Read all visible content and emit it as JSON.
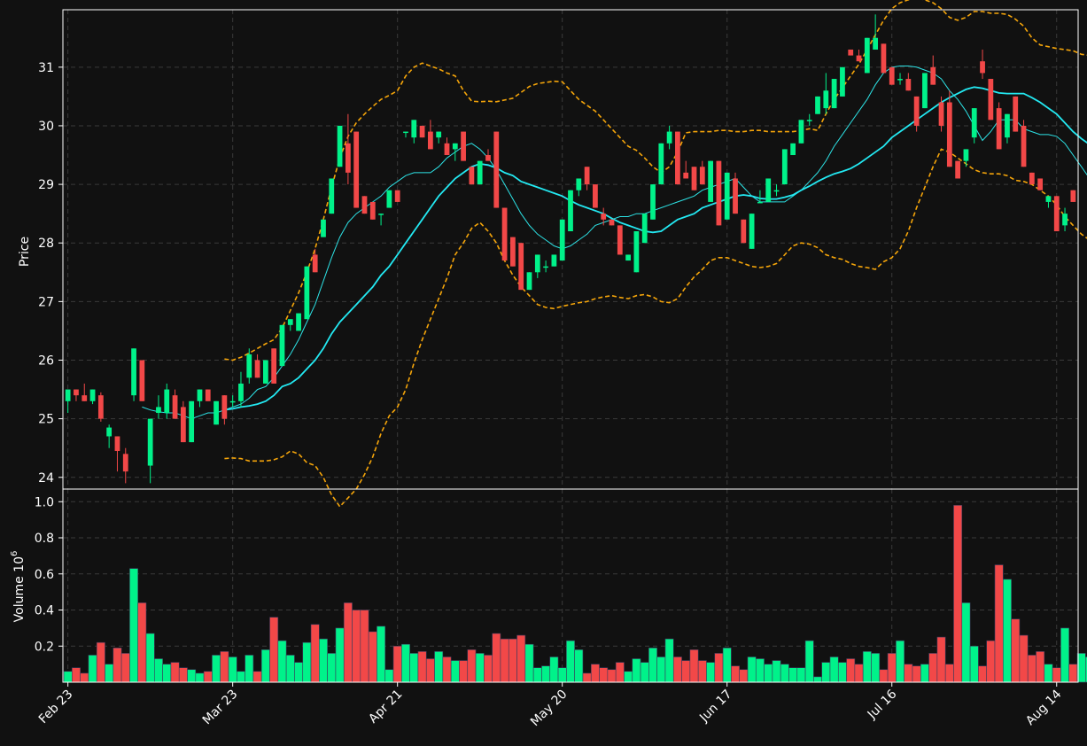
{
  "colors": {
    "background": "#111111",
    "up": "#00f28a",
    "down": "#f24848",
    "ma_fast": "#2de3e6",
    "ma_slow": "#23e9f2",
    "bands": "#f5a50a",
    "grid": "#3a3a3a",
    "text": "#ffffff"
  },
  "chart_data": {
    "type": "candlestick",
    "ylabel": "Price",
    "volume_label": "Volume  10",
    "volume_exponent": "6",
    "price_ylim": [
      23.8,
      31.98
    ],
    "price_yticks": [
      24,
      25,
      26,
      27,
      28,
      29,
      30,
      31
    ],
    "volume_ylim": [
      0,
      1.07
    ],
    "volume_yticks": [
      0.2,
      0.4,
      0.6,
      0.8,
      1.0
    ],
    "x_ticks": [
      {
        "index": 0,
        "label": "Feb 23"
      },
      {
        "index": 20,
        "label": "Mar 23"
      },
      {
        "index": 40,
        "label": "Apr 21"
      },
      {
        "index": 60,
        "label": "May 20"
      },
      {
        "index": 80,
        "label": "Jun 17"
      },
      {
        "index": 100,
        "label": "Jul 16"
      },
      {
        "index": 120,
        "label": "Aug 14"
      }
    ],
    "grid": true,
    "ohlc": [
      [
        25.3,
        25.5,
        25.1,
        25.5
      ],
      [
        25.5,
        25.5,
        25.3,
        25.4
      ],
      [
        25.4,
        25.6,
        25.3,
        25.3
      ],
      [
        25.3,
        25.5,
        25.25,
        25.5
      ],
      [
        25.4,
        25.45,
        24.95,
        25.0
      ],
      [
        24.7,
        24.9,
        24.5,
        24.85
      ],
      [
        24.7,
        24.7,
        24.1,
        24.45
      ],
      [
        24.4,
        24.5,
        23.9,
        24.1
      ],
      [
        25.4,
        26.2,
        25.3,
        26.2
      ],
      [
        26.0,
        26.0,
        25.3,
        25.3
      ],
      [
        24.2,
        25.0,
        23.9,
        25.0
      ],
      [
        25.1,
        25.4,
        25.0,
        25.2
      ],
      [
        25.1,
        25.6,
        25.0,
        25.5
      ],
      [
        25.4,
        25.5,
        25.0,
        25.0
      ],
      [
        25.2,
        25.3,
        24.6,
        24.6
      ],
      [
        24.6,
        25.3,
        24.6,
        25.3
      ],
      [
        25.3,
        25.5,
        25.2,
        25.5
      ],
      [
        25.5,
        25.5,
        25.3,
        25.3
      ],
      [
        24.9,
        25.3,
        24.9,
        25.3
      ],
      [
        25.4,
        25.4,
        24.9,
        25.0
      ],
      [
        25.3,
        25.4,
        25.2,
        25.3
      ],
      [
        25.3,
        25.8,
        25.2,
        25.6
      ],
      [
        25.7,
        26.2,
        25.6,
        26.1
      ],
      [
        26.0,
        26.1,
        25.7,
        25.7
      ],
      [
        25.6,
        26.0,
        25.6,
        26.0
      ],
      [
        26.2,
        26.2,
        25.6,
        25.6
      ],
      [
        25.9,
        26.6,
        25.9,
        26.6
      ],
      [
        26.6,
        26.7,
        26.5,
        26.7
      ],
      [
        26.5,
        26.8,
        26.5,
        26.8
      ],
      [
        26.7,
        27.6,
        26.7,
        27.6
      ],
      [
        27.8,
        27.9,
        27.5,
        27.5
      ],
      [
        28.1,
        28.4,
        28.1,
        28.4
      ],
      [
        28.5,
        29.1,
        28.5,
        29.1
      ],
      [
        29.3,
        30.0,
        29.3,
        30.0
      ],
      [
        29.7,
        30.2,
        29.0,
        29.2
      ],
      [
        29.9,
        29.9,
        28.6,
        28.6
      ],
      [
        28.8,
        28.8,
        28.5,
        28.5
      ],
      [
        28.7,
        28.7,
        28.4,
        28.4
      ],
      [
        28.5,
        28.5,
        28.3,
        28.5
      ],
      [
        28.6,
        28.9,
        28.6,
        28.9
      ],
      [
        28.9,
        28.9,
        28.7,
        28.7
      ],
      [
        29.9,
        29.9,
        29.8,
        29.9
      ],
      [
        29.8,
        30.1,
        29.7,
        30.1
      ],
      [
        30.0,
        30.0,
        29.8,
        29.8
      ],
      [
        29.9,
        30.1,
        29.6,
        29.6
      ],
      [
        29.8,
        29.9,
        29.7,
        29.9
      ],
      [
        29.7,
        29.8,
        29.5,
        29.5
      ],
      [
        29.6,
        29.7,
        29.4,
        29.7
      ],
      [
        29.9,
        29.9,
        29.4,
        29.4
      ],
      [
        29.3,
        29.3,
        29.0,
        29.0
      ],
      [
        29.0,
        29.4,
        29.0,
        29.4
      ],
      [
        29.5,
        29.6,
        29.4,
        29.4
      ],
      [
        29.9,
        29.9,
        28.6,
        28.6
      ],
      [
        28.6,
        28.6,
        27.7,
        27.7
      ],
      [
        28.1,
        28.1,
        27.6,
        27.6
      ],
      [
        28.0,
        28.0,
        27.2,
        27.2
      ],
      [
        27.2,
        27.5,
        27.2,
        27.5
      ],
      [
        27.5,
        27.8,
        27.4,
        27.8
      ],
      [
        27.6,
        27.7,
        27.5,
        27.6
      ],
      [
        27.6,
        27.8,
        27.6,
        27.8
      ],
      [
        27.7,
        28.4,
        27.7,
        28.4
      ],
      [
        28.2,
        28.9,
        28.2,
        28.9
      ],
      [
        28.9,
        29.1,
        28.8,
        29.1
      ],
      [
        29.3,
        29.3,
        28.9,
        29.0
      ],
      [
        29.0,
        29.0,
        28.6,
        28.6
      ],
      [
        28.5,
        28.6,
        28.3,
        28.4
      ],
      [
        28.4,
        28.4,
        28.3,
        28.3
      ],
      [
        28.3,
        28.3,
        27.8,
        27.8
      ],
      [
        27.7,
        27.8,
        27.7,
        27.8
      ],
      [
        27.5,
        28.2,
        27.5,
        28.2
      ],
      [
        28.0,
        28.5,
        28.0,
        28.5
      ],
      [
        28.4,
        29.0,
        28.4,
        29.0
      ],
      [
        29.0,
        29.7,
        29.0,
        29.7
      ],
      [
        29.7,
        30.0,
        29.6,
        29.9
      ],
      [
        29.9,
        29.9,
        29.0,
        29.0
      ],
      [
        29.2,
        29.4,
        29.1,
        29.1
      ],
      [
        29.3,
        29.3,
        28.9,
        28.9
      ],
      [
        29.3,
        29.4,
        29.0,
        29.0
      ],
      [
        28.7,
        29.4,
        28.7,
        29.4
      ],
      [
        29.4,
        29.4,
        28.3,
        28.3
      ],
      [
        28.4,
        29.2,
        28.4,
        29.2
      ],
      [
        29.1,
        29.2,
        28.5,
        28.5
      ],
      [
        28.4,
        28.4,
        28.0,
        28.0
      ],
      [
        27.9,
        28.5,
        27.9,
        28.5
      ],
      [
        28.7,
        28.9,
        28.7,
        28.7
      ],
      [
        28.7,
        29.1,
        28.7,
        29.1
      ],
      [
        28.9,
        29.0,
        28.8,
        28.9
      ],
      [
        29.0,
        29.6,
        29.0,
        29.6
      ],
      [
        29.5,
        29.7,
        29.5,
        29.7
      ],
      [
        29.7,
        30.1,
        29.7,
        30.1
      ],
      [
        30.1,
        30.2,
        30.0,
        30.1
      ],
      [
        30.2,
        30.5,
        30.2,
        30.5
      ],
      [
        30.3,
        30.9,
        30.2,
        30.6
      ],
      [
        30.3,
        30.8,
        30.3,
        30.8
      ],
      [
        30.5,
        31.0,
        30.5,
        31.0
      ],
      [
        31.3,
        31.3,
        31.2,
        31.2
      ],
      [
        31.2,
        31.3,
        31.1,
        31.1
      ],
      [
        30.9,
        31.5,
        30.9,
        31.5
      ],
      [
        31.3,
        31.9,
        31.3,
        31.5
      ],
      [
        31.4,
        31.4,
        30.9,
        30.9
      ],
      [
        31.0,
        31.0,
        30.7,
        30.7
      ],
      [
        30.8,
        30.9,
        30.7,
        30.8
      ],
      [
        30.8,
        30.9,
        30.6,
        30.6
      ],
      [
        30.5,
        30.5,
        29.9,
        30.0
      ],
      [
        30.3,
        30.9,
        30.3,
        30.9
      ],
      [
        31.0,
        31.2,
        30.7,
        30.7
      ],
      [
        30.4,
        30.5,
        29.9,
        30.0
      ],
      [
        30.4,
        30.6,
        29.3,
        29.3
      ],
      [
        29.4,
        29.4,
        29.1,
        29.1
      ],
      [
        29.4,
        29.6,
        29.3,
        29.6
      ],
      [
        29.8,
        30.3,
        29.7,
        30.3
      ],
      [
        31.1,
        31.3,
        30.8,
        30.9
      ],
      [
        30.8,
        30.8,
        30.1,
        30.1
      ],
      [
        30.3,
        30.4,
        29.6,
        29.6
      ],
      [
        29.8,
        30.2,
        29.7,
        30.2
      ],
      [
        30.5,
        30.5,
        29.9,
        29.9
      ],
      [
        30.0,
        30.1,
        29.3,
        29.3
      ],
      [
        29.2,
        29.2,
        29.0,
        29.0
      ],
      [
        29.1,
        29.1,
        28.9,
        28.9
      ],
      [
        28.7,
        28.8,
        28.6,
        28.8
      ],
      [
        28.8,
        28.8,
        28.2,
        28.2
      ],
      [
        28.3,
        28.6,
        28.2,
        28.5
      ],
      [
        28.9,
        28.9,
        28.7,
        28.7
      ]
    ],
    "volume": [
      0.06,
      0.08,
      0.05,
      0.15,
      0.22,
      0.1,
      0.19,
      0.16,
      0.63,
      0.44,
      0.27,
      0.13,
      0.1,
      0.11,
      0.08,
      0.07,
      0.05,
      0.06,
      0.15,
      0.17,
      0.14,
      0.06,
      0.15,
      0.06,
      0.18,
      0.36,
      0.23,
      0.15,
      0.11,
      0.22,
      0.32,
      0.24,
      0.16,
      0.3,
      0.44,
      0.4,
      0.4,
      0.28,
      0.31,
      0.07,
      0.2,
      0.21,
      0.16,
      0.17,
      0.13,
      0.17,
      0.14,
      0.12,
      0.12,
      0.18,
      0.16,
      0.15,
      0.27,
      0.24,
      0.24,
      0.26,
      0.21,
      0.08,
      0.09,
      0.14,
      0.08,
      0.23,
      0.18,
      0.05,
      0.1,
      0.08,
      0.07,
      0.11,
      0.06,
      0.13,
      0.11,
      0.19,
      0.14,
      0.24,
      0.14,
      0.12,
      0.18,
      0.12,
      0.11,
      0.16,
      0.19,
      0.09,
      0.07,
      0.14,
      0.13,
      0.1,
      0.12,
      0.1,
      0.08,
      0.08,
      0.23,
      0.03,
      0.11,
      0.14,
      0.11,
      0.13,
      0.1,
      0.17,
      0.16,
      0.07,
      0.16,
      0.23,
      0.1,
      0.09,
      0.1,
      0.16,
      0.25,
      0.1,
      0.98,
      0.44,
      0.2,
      0.09,
      0.23,
      0.65,
      0.57,
      0.35,
      0.26,
      0.15,
      0.17,
      0.1,
      0.08,
      0.3,
      0.1,
      0.16,
      0.14,
      0.16
    ],
    "ma_fast": [
      null,
      null,
      null,
      null,
      null,
      null,
      null,
      null,
      null,
      25.2,
      25.15,
      25.12,
      25.1,
      25.1,
      25.05,
      25.0,
      25.05,
      25.1,
      25.1,
      25.15,
      25.2,
      25.25,
      25.35,
      25.5,
      25.55,
      25.7,
      25.9,
      26.1,
      26.35,
      26.65,
      26.95,
      27.35,
      27.75,
      28.1,
      28.35,
      28.5,
      28.6,
      28.7,
      28.8,
      28.95,
      29.05,
      29.15,
      29.2,
      29.2,
      29.2,
      29.3,
      29.45,
      29.55,
      29.65,
      29.7,
      29.6,
      29.45,
      29.25,
      29.0,
      28.75,
      28.5,
      28.3,
      28.15,
      28.05,
      27.95,
      27.9,
      27.95,
      28.05,
      28.15,
      28.3,
      28.35,
      28.4,
      28.45,
      28.45,
      28.5,
      28.5,
      28.55,
      28.6,
      28.65,
      28.7,
      28.75,
      28.8,
      28.9,
      28.95,
      29.0,
      29.05,
      29.1,
      28.95,
      28.8,
      28.7,
      28.7,
      28.7,
      28.7,
      28.8,
      28.9,
      29.05,
      29.2,
      29.4,
      29.65,
      29.85,
      30.05,
      30.25,
      30.45,
      30.7,
      30.9,
      31.0,
      31.02,
      31.02,
      31.0,
      30.95,
      30.9,
      30.8,
      30.6,
      30.45,
      30.25,
      30.0,
      29.75,
      29.9,
      30.1,
      30.1,
      30.1,
      29.95,
      29.9,
      29.85,
      29.85,
      29.82,
      29.7,
      29.5,
      29.3,
      29.1
    ],
    "ma_slow": [
      null,
      null,
      null,
      null,
      null,
      null,
      null,
      null,
      null,
      null,
      null,
      null,
      null,
      null,
      null,
      null,
      null,
      null,
      null,
      25.15,
      25.17,
      25.2,
      25.22,
      25.25,
      25.3,
      25.4,
      25.55,
      25.6,
      25.7,
      25.85,
      26.0,
      26.2,
      26.45,
      26.65,
      26.8,
      26.95,
      27.1,
      27.25,
      27.45,
      27.6,
      27.8,
      28.0,
      28.2,
      28.4,
      28.6,
      28.8,
      28.95,
      29.1,
      29.2,
      29.3,
      29.35,
      29.33,
      29.28,
      29.2,
      29.15,
      29.05,
      29.0,
      28.95,
      28.9,
      28.85,
      28.8,
      28.72,
      28.65,
      28.6,
      28.55,
      28.5,
      28.42,
      28.35,
      28.3,
      28.25,
      28.2,
      28.18,
      28.2,
      28.3,
      28.4,
      28.45,
      28.5,
      28.6,
      28.65,
      28.7,
      28.75,
      28.8,
      28.82,
      28.8,
      28.76,
      28.75,
      28.75,
      28.78,
      28.82,
      28.9,
      28.97,
      29.05,
      29.12,
      29.18,
      29.22,
      29.27,
      29.35,
      29.45,
      29.55,
      29.65,
      29.8,
      29.9,
      30.0,
      30.1,
      30.2,
      30.3,
      30.4,
      30.48,
      30.55,
      30.62,
      30.66,
      30.64,
      30.6,
      30.56,
      30.55,
      30.55,
      30.55,
      30.48,
      30.4,
      30.3,
      30.2,
      30.05,
      29.9,
      29.78,
      29.68,
      29.62
    ],
    "band_upper": [
      null,
      null,
      null,
      null,
      null,
      null,
      null,
      null,
      null,
      null,
      null,
      null,
      null,
      null,
      null,
      null,
      null,
      null,
      null,
      26.02,
      26.0,
      26.05,
      26.12,
      26.2,
      26.28,
      26.35,
      26.55,
      26.85,
      27.15,
      27.5,
      27.9,
      28.4,
      28.95,
      29.45,
      29.82,
      30.05,
      30.2,
      30.33,
      30.45,
      30.52,
      30.6,
      30.85,
      31.0,
      31.07,
      31.02,
      30.97,
      30.9,
      30.85,
      30.6,
      30.42,
      30.41,
      30.42,
      30.41,
      30.44,
      30.47,
      30.57,
      30.67,
      30.72,
      30.74,
      30.76,
      30.75,
      30.6,
      30.45,
      30.35,
      30.25,
      30.1,
      29.95,
      29.8,
      29.65,
      29.58,
      29.45,
      29.3,
      29.2,
      29.3,
      29.55,
      29.88,
      29.9,
      29.9,
      29.9,
      29.92,
      29.92,
      29.9,
      29.9,
      29.92,
      29.92,
      29.9,
      29.9,
      29.9,
      29.9,
      29.92,
      29.95,
      29.92,
      30.2,
      30.45,
      30.65,
      30.85,
      31.05,
      31.3,
      31.55,
      31.8,
      32.0,
      32.1,
      32.15,
      32.18,
      32.15,
      32.1,
      32.0,
      31.85,
      31.8,
      31.85,
      31.95,
      31.95,
      31.92,
      31.92,
      31.9,
      31.82,
      31.7,
      31.5,
      31.38,
      31.35,
      31.32,
      31.3,
      31.28,
      31.22,
      31.2
    ],
    "band_lower": [
      null,
      null,
      null,
      null,
      null,
      null,
      null,
      null,
      null,
      null,
      null,
      null,
      null,
      null,
      null,
      null,
      null,
      null,
      null,
      24.32,
      24.33,
      24.32,
      24.28,
      24.28,
      24.28,
      24.3,
      24.35,
      24.45,
      24.4,
      24.25,
      24.2,
      24.0,
      23.7,
      23.5,
      23.65,
      23.8,
      24.05,
      24.35,
      24.75,
      25.05,
      25.2,
      25.5,
      25.95,
      26.35,
      26.7,
      27.05,
      27.4,
      27.8,
      28.0,
      28.25,
      28.35,
      28.2,
      28.0,
      27.7,
      27.45,
      27.25,
      27.1,
      26.95,
      26.9,
      26.88,
      26.92,
      26.95,
      26.98,
      27.0,
      27.05,
      27.08,
      27.1,
      27.07,
      27.05,
      27.1,
      27.12,
      27.08,
      27.0,
      26.98,
      27.05,
      27.25,
      27.42,
      27.55,
      27.7,
      27.75,
      27.75,
      27.7,
      27.65,
      27.6,
      27.58,
      27.6,
      27.65,
      27.8,
      27.95,
      28.0,
      27.98,
      27.92,
      27.8,
      27.75,
      27.72,
      27.65,
      27.6,
      27.58,
      27.55,
      27.68,
      27.75,
      27.9,
      28.2,
      28.6,
      28.95,
      29.3,
      29.6,
      29.55,
      29.45,
      29.35,
      29.25,
      29.2,
      29.18,
      29.18,
      29.15,
      29.07,
      29.05,
      29.0,
      28.9,
      28.8,
      28.65,
      28.45,
      28.3,
      28.15,
      28.05
    ]
  }
}
